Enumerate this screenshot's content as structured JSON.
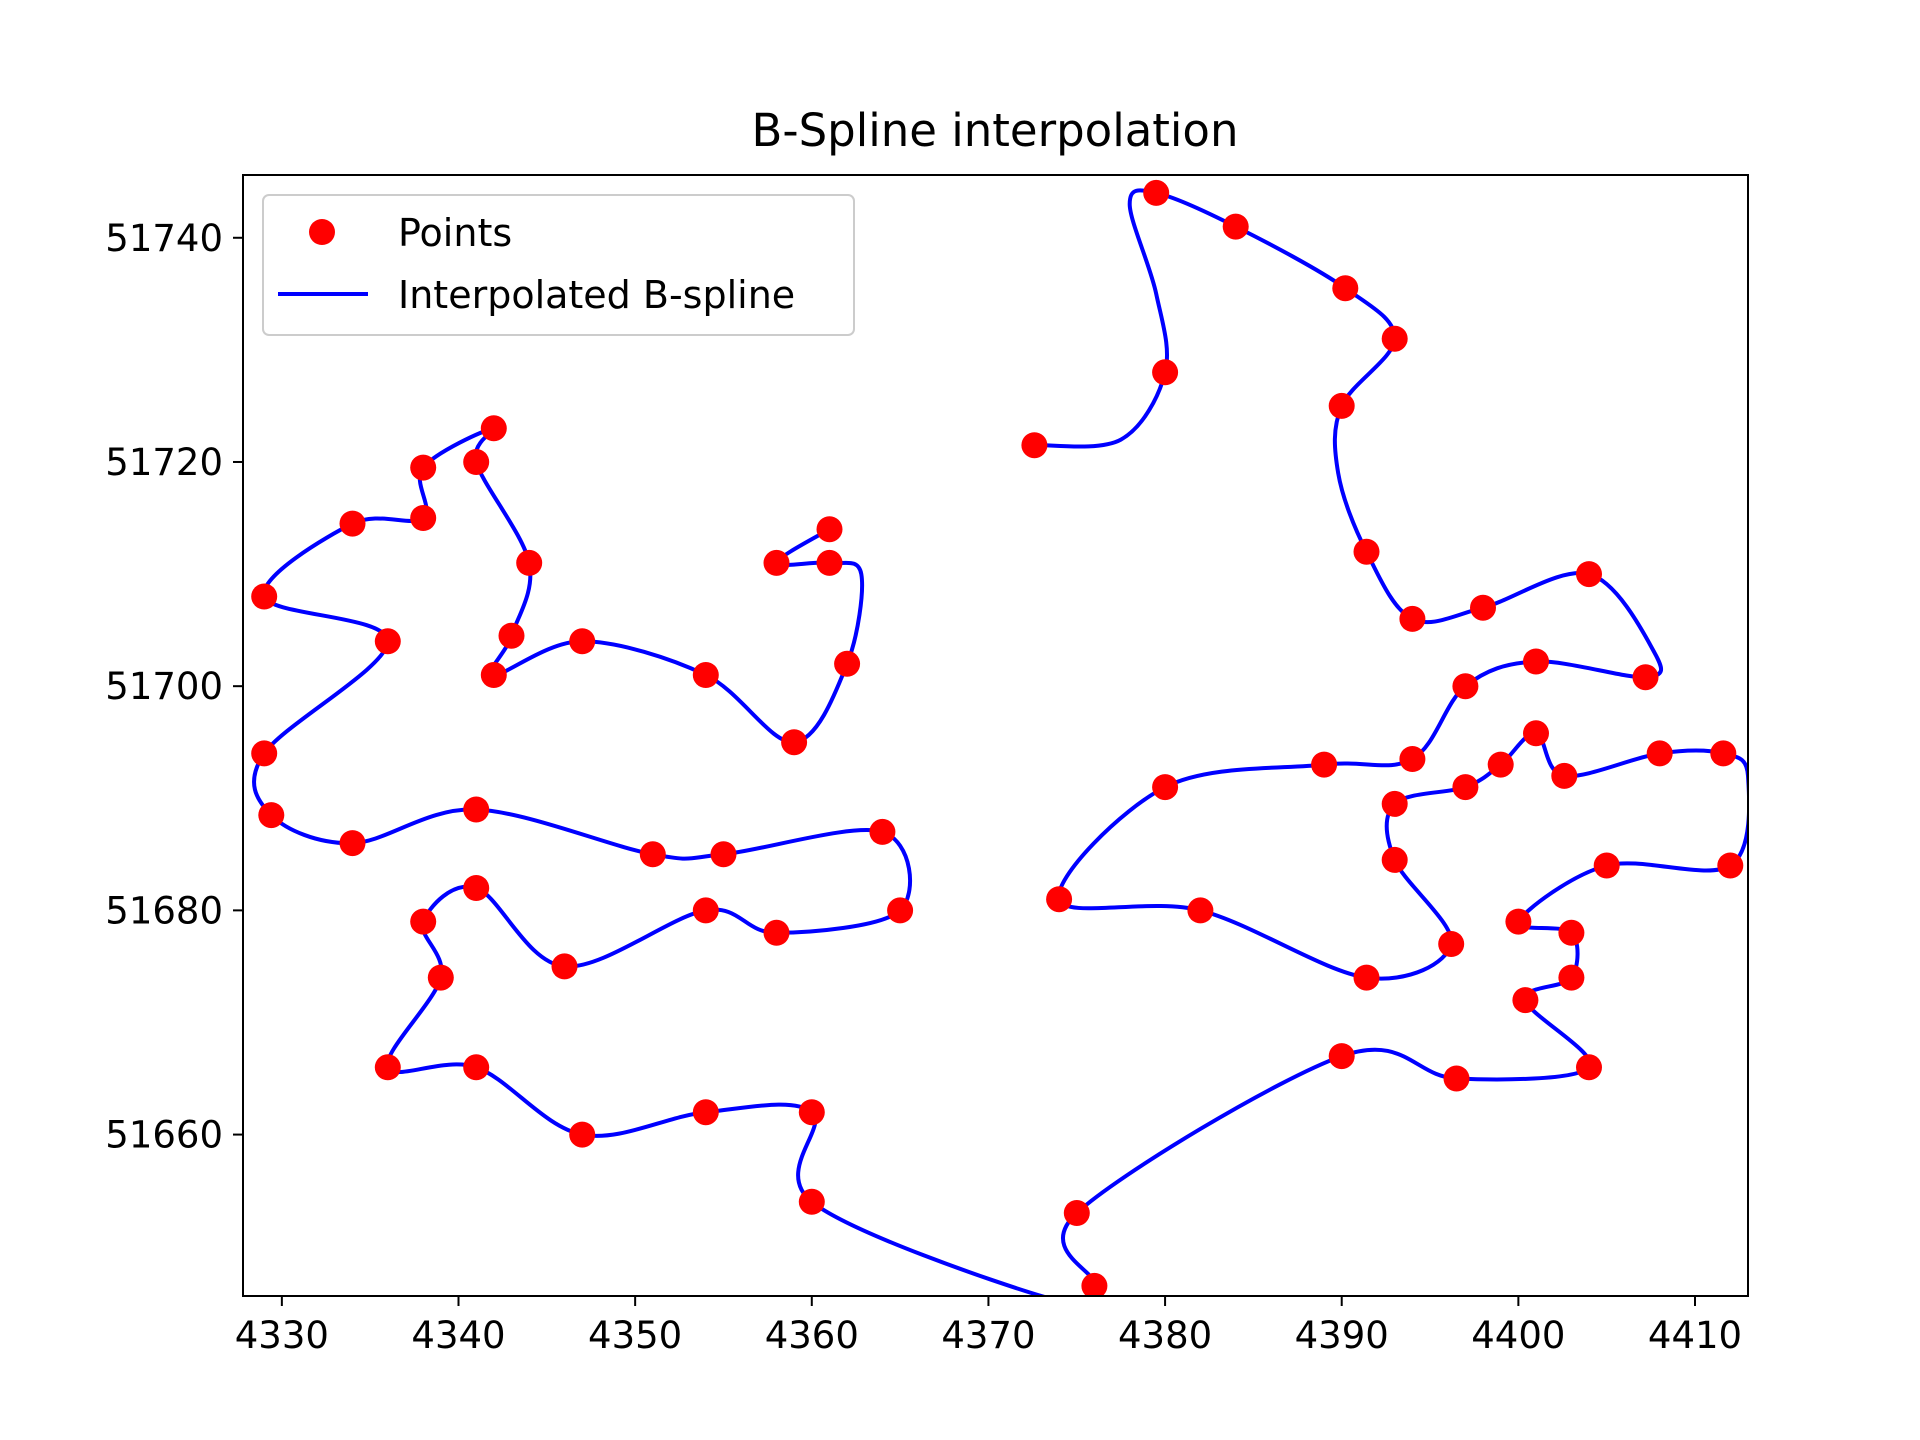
{
  "chart_data": {
    "type": "line",
    "title": "B-Spline interpolation",
    "xlabel": "",
    "ylabel": "",
    "xlim": [
      4327.8,
      4413.0
    ],
    "ylim": [
      51645.6,
      51745.6
    ],
    "x_ticks": [
      4330,
      4340,
      4350,
      4360,
      4370,
      4380,
      4390,
      4400,
      4410
    ],
    "y_ticks": [
      51660,
      51680,
      51700,
      51720,
      51740
    ],
    "grid": false,
    "legend": {
      "placement": "upper-left",
      "entries": [
        "Points",
        "Interpolated B-spline"
      ]
    },
    "colors": {
      "points": "#ff0000",
      "spline": "#0000ff"
    },
    "series": [
      {
        "name": "Points",
        "kind": "scatter",
        "x": [
          4372.6,
          4380.0,
          4379.5,
          4384.0,
          4390.2,
          4393.0,
          4390.0,
          4391.4,
          4394.0,
          4398.0,
          4404.0,
          4407.2,
          4401.0,
          4397.0,
          4394.0,
          4389.0,
          4380.0,
          4374.0,
          4382.0,
          4391.4,
          4396.2,
          4393.0,
          4393.0,
          4397.0,
          4399.0,
          4401.0,
          4402.6,
          4408.0,
          4411.6,
          4412.0,
          4405.0,
          4400.0,
          4403.0,
          4403.0,
          4400.4,
          4404.0,
          4396.5,
          4390.0,
          4375.0,
          4376.0,
          4360.0,
          4360.0,
          4354.0,
          4347.0,
          4341.0,
          4336.0,
          4339.0,
          4338.0,
          4341.0,
          4346.0,
          4354.0,
          4358.0,
          4365.0,
          4364.0,
          4355.0,
          4351.0,
          4341.0,
          4334.0,
          4329.4,
          4329.0,
          4336.0,
          4329.0,
          4334.0,
          4338.0,
          4338.0,
          4342.0,
          4341.0,
          4344.0,
          4343.0,
          4342.0,
          4347.0,
          4354.0,
          4359.0,
          4362.0,
          4361.0,
          4358.0,
          4361.0
        ],
        "y": [
          51721.5,
          51728.0,
          51744.0,
          51741.0,
          51735.5,
          51731.0,
          51725.0,
          51712.0,
          51706.0,
          51707.0,
          51710.0,
          51700.8,
          51702.2,
          51700.0,
          51693.5,
          51693.0,
          51691.0,
          51681.0,
          51680.0,
          51674.0,
          51677.0,
          51684.5,
          51689.5,
          51691.0,
          51693.0,
          51695.8,
          51692.0,
          51694.0,
          51694.0,
          51684.0,
          51684.0,
          51679.0,
          51678.0,
          51674.0,
          51672.0,
          51666.0,
          51665.0,
          51667.0,
          51653.0,
          51646.5,
          51654.0,
          51662.0,
          51662.0,
          51660.0,
          51666.0,
          51666.0,
          51674.0,
          51679.0,
          51682.0,
          51675.0,
          51680.0,
          51678.0,
          51680.0,
          51687.0,
          51685.0,
          51685.0,
          51689.0,
          51686.0,
          51688.5,
          51694.0,
          51704.0,
          51708.0,
          51714.5,
          51715.0,
          51719.5,
          51723.0,
          51720.0,
          51711.0,
          51704.5,
          51701.0,
          51704.0,
          51701.0,
          51695.0,
          51702.0,
          51711.0,
          51711.0,
          51714.0
        ]
      },
      {
        "name": "Interpolated B-spline",
        "kind": "line",
        "x": [
          4372.6,
          4377.5,
          4380.0,
          4379.5,
          4378.0,
          4379.5,
          4384.0,
          4390.2,
          4393.0,
          4390.0,
          4389.8,
          4391.4,
          4394.0,
          4398.0,
          4404.0,
          4407.7,
          4407.2,
          4401.0,
          4397.0,
          4394.0,
          4389.0,
          4380.0,
          4374.0,
          4382.0,
          4391.4,
          4396.2,
          4393.0,
          4393.0,
          4397.0,
          4399.0,
          4401.0,
          4402.6,
          4408.0,
          4411.6,
          4413.0,
          4412.0,
          4405.0,
          4400.0,
          4403.0,
          4403.0,
          4400.4,
          4404.0,
          4396.5,
          4390.0,
          4375.0,
          4376.0,
          4373.0,
          4360.0,
          4360.0,
          4354.0,
          4347.0,
          4341.0,
          4336.0,
          4339.0,
          4338.0,
          4341.0,
          4346.0,
          4354.0,
          4358.0,
          4365.0,
          4364.0,
          4355.0,
          4351.0,
          4341.0,
          4334.0,
          4329.4,
          4329.0,
          4336.0,
          4329.0,
          4334.0,
          4338.0,
          4338.0,
          4342.0,
          4341.0,
          4344.0,
          4343.0,
          4342.0,
          4347.0,
          4354.0,
          4359.0,
          4362.0,
          4362.8,
          4361.0,
          4358.0,
          4361.0
        ],
        "y": [
          51721.5,
          51722.0,
          51728.0,
          51735.0,
          51743.0,
          51744.0,
          51741.0,
          51735.5,
          51731.0,
          51725.0,
          51719.0,
          51712.0,
          51706.0,
          51707.0,
          51710.0,
          51703.0,
          51700.8,
          51702.2,
          51700.0,
          51693.5,
          51693.0,
          51691.0,
          51681.0,
          51680.0,
          51674.0,
          51677.0,
          51684.5,
          51689.5,
          51691.0,
          51693.0,
          51695.8,
          51692.0,
          51694.0,
          51694.0,
          51692.0,
          51684.0,
          51684.0,
          51679.0,
          51678.0,
          51674.0,
          51672.0,
          51666.0,
          51665.0,
          51667.0,
          51653.0,
          51646.5,
          51645.6,
          51654.0,
          51662.0,
          51662.0,
          51660.0,
          51666.0,
          51666.0,
          51674.0,
          51679.0,
          51682.0,
          51675.0,
          51680.0,
          51678.0,
          51680.0,
          51687.0,
          51685.0,
          51685.0,
          51689.0,
          51686.0,
          51688.5,
          51694.0,
          51704.0,
          51708.0,
          51714.5,
          51715.0,
          51719.5,
          51723.0,
          51720.0,
          51711.0,
          51704.5,
          51701.0,
          51704.0,
          51701.0,
          51695.0,
          51702.0,
          51710.0,
          51711.0,
          51711.0,
          51714.0
        ]
      }
    ]
  }
}
